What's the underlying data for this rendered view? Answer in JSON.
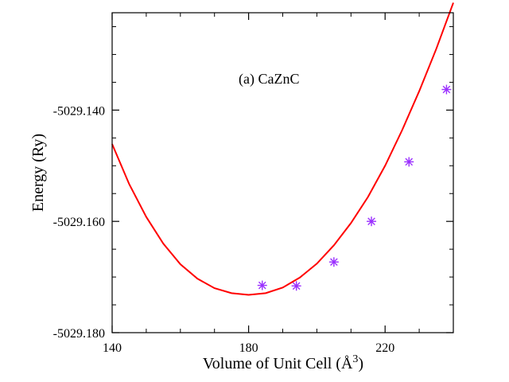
{
  "chart_data": {
    "type": "scatter",
    "title": "",
    "annotation": "(a) CaZnC",
    "xlabel": "Volume of Unit Cell (Å",
    "xlabel_sup": "3",
    "xlabel_end": ")",
    "ylabel": "Energy (Ry)",
    "xlim": [
      140,
      240
    ],
    "ylim": [
      -5029.18,
      -5029.1225
    ],
    "x_ticks": [
      140,
      180,
      220
    ],
    "x_tick_labels": [
      "140",
      "180",
      "220"
    ],
    "y_ticks": [
      -5029.18,
      -5029.16,
      -5029.14
    ],
    "y_tick_labels": [
      "-5029.180",
      "-5029.160",
      "-5029.140"
    ],
    "grid": false,
    "series": [
      {
        "type": "scatter",
        "marker": "asterisk",
        "color": "#9b30ff",
        "x": [
          184,
          194,
          205,
          216,
          227,
          238
        ],
        "y": [
          -5029.1715,
          -5029.1716,
          -5029.1673,
          -5029.16,
          -5029.1493,
          -5029.1363
        ]
      },
      {
        "type": "line",
        "color": "#ff0000",
        "x": [
          140,
          145,
          150,
          155,
          160,
          165,
          170,
          175,
          180,
          185,
          190,
          195,
          200,
          205,
          210,
          215,
          220,
          225,
          230,
          235,
          240
        ],
        "y": [
          -5029.1461,
          -5029.1533,
          -5029.1592,
          -5029.164,
          -5029.1677,
          -5029.1703,
          -5029.172,
          -5029.1729,
          -5029.1732,
          -5029.1729,
          -5029.1719,
          -5029.1701,
          -5029.1676,
          -5029.1643,
          -5029.1603,
          -5029.1556,
          -5029.15,
          -5029.1436,
          -5029.1366,
          -5029.129,
          -5029.1207
        ]
      }
    ]
  },
  "colors": {
    "curve": "#ff0000",
    "markers": "#9b30ff",
    "axes": "#000000"
  }
}
